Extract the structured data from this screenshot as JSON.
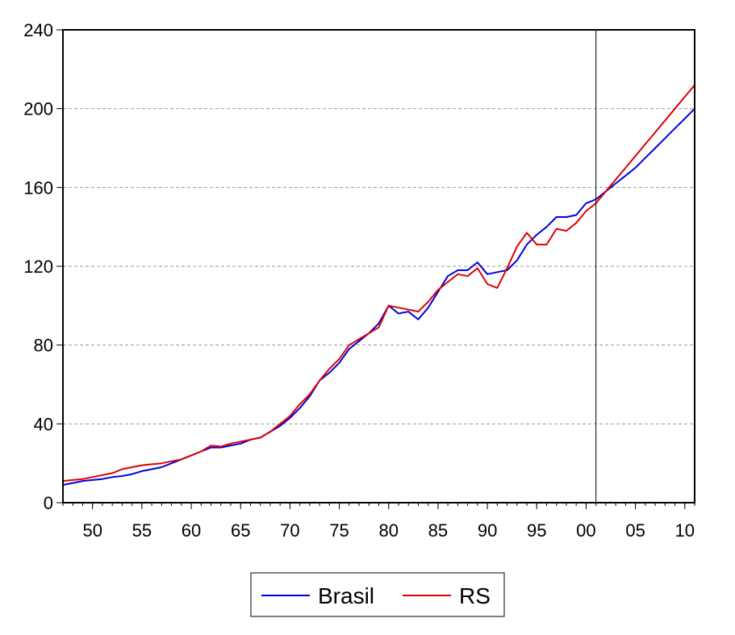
{
  "chart_data": {
    "type": "line",
    "title": "",
    "xlabel": "",
    "ylabel": "",
    "xlim": [
      1947,
      2011
    ],
    "ylim": [
      0,
      240
    ],
    "y_ticks": [
      0,
      40,
      80,
      120,
      160,
      200,
      240
    ],
    "y_tick_labels": [
      "0",
      "40",
      "80",
      "120",
      "160",
      "200",
      "240"
    ],
    "x_ticks": [
      1950,
      1955,
      1960,
      1965,
      1970,
      1975,
      1980,
      1985,
      1990,
      1995,
      2000,
      2005,
      2010
    ],
    "x_tick_labels": [
      "50",
      "55",
      "60",
      "65",
      "70",
      "75",
      "80",
      "85",
      "90",
      "95",
      "00",
      "05",
      "10"
    ],
    "grid": "horizontal dashed",
    "vline": 2001,
    "legend_position": "bottom-center",
    "x": [
      1947,
      1948,
      1949,
      1950,
      1951,
      1952,
      1953,
      1954,
      1955,
      1956,
      1957,
      1958,
      1959,
      1960,
      1961,
      1962,
      1963,
      1964,
      1965,
      1966,
      1967,
      1968,
      1969,
      1970,
      1971,
      1972,
      1973,
      1974,
      1975,
      1976,
      1977,
      1978,
      1979,
      1980,
      1981,
      1982,
      1983,
      1984,
      1985,
      1986,
      1987,
      1988,
      1989,
      1990,
      1991,
      1992,
      1993,
      1994,
      1995,
      1996,
      1997,
      1998,
      1999,
      2000,
      2001,
      2002,
      2003,
      2004,
      2005,
      2006,
      2007,
      2008,
      2009,
      2010,
      2011
    ],
    "series": [
      {
        "name": "Brasil",
        "color": "#0000dd",
        "values": [
          9,
          10,
          11,
          11.5,
          12,
          13,
          13.5,
          14.5,
          16,
          17,
          18,
          20,
          22,
          24,
          26,
          28,
          28,
          29,
          30,
          32,
          33,
          36,
          39,
          43,
          48,
          54,
          62,
          66,
          71,
          78,
          82,
          86,
          91,
          100,
          96,
          97,
          93,
          99,
          107,
          115,
          118,
          118,
          122,
          116,
          117,
          118,
          123,
          131,
          136,
          140,
          145,
          145,
          146,
          152,
          154,
          158,
          162,
          166,
          170,
          175,
          180,
          185,
          190,
          195,
          200
        ]
      },
      {
        "name": "RS",
        "color": "#dd0000",
        "values": [
          11,
          11.5,
          12,
          13,
          14,
          15,
          17,
          18,
          19,
          19.5,
          20,
          21,
          22,
          24,
          26,
          29,
          28.5,
          30,
          31,
          32,
          33,
          36,
          40,
          44,
          50,
          55,
          62,
          68,
          73,
          80,
          83,
          86,
          89,
          100,
          99,
          98,
          97,
          102,
          108,
          112,
          116,
          115,
          119,
          111,
          109,
          119,
          130,
          137,
          131,
          131,
          139,
          138,
          142,
          148,
          152,
          158,
          164,
          170,
          176,
          182,
          188,
          194,
          200,
          206,
          212
        ]
      }
    ]
  }
}
